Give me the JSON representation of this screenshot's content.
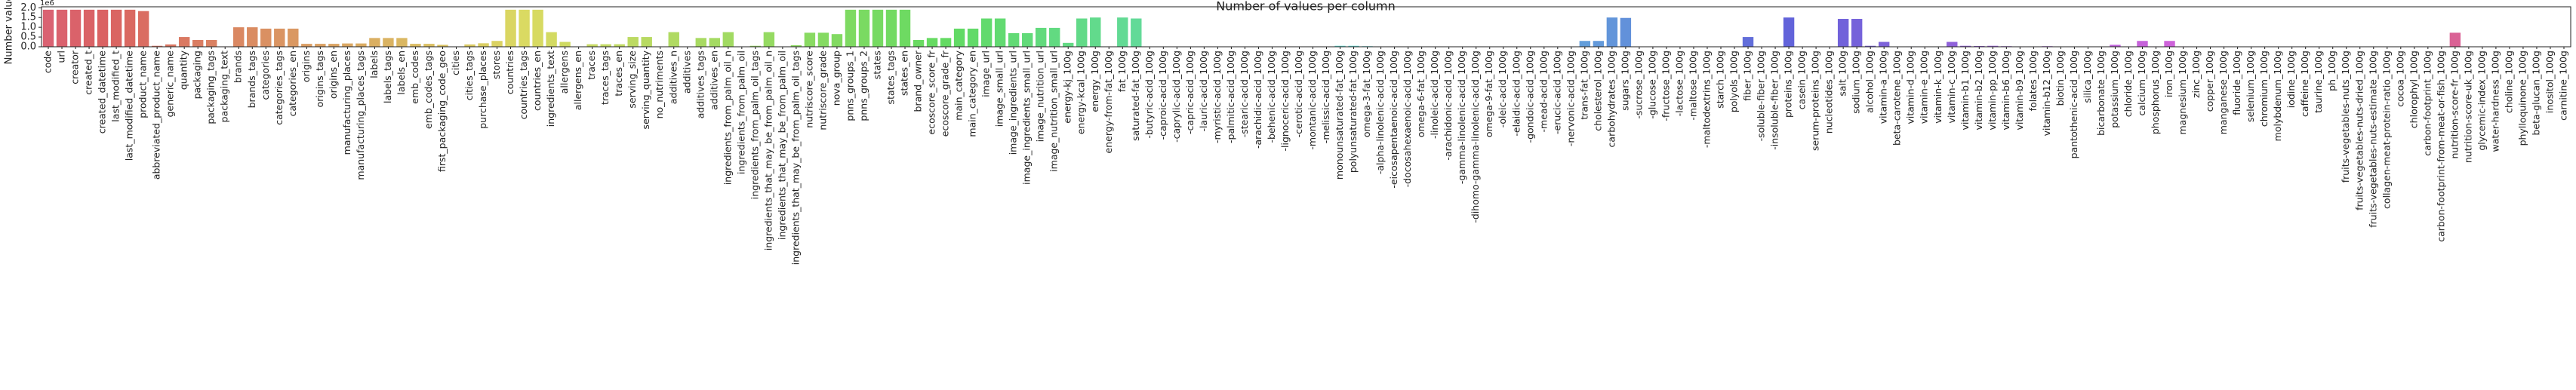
{
  "chart_data": {
    "type": "bar",
    "title": "Number of values per column",
    "y_label": "Number values",
    "y_offset_label": "1e6",
    "palette": "husl",
    "categories": [
      "code",
      "url",
      "creator",
      "created_t",
      "created_datetime",
      "last_modified_t",
      "last_modified_datetime",
      "product_name",
      "abbreviated_product_name",
      "generic_name",
      "quantity",
      "packaging",
      "packaging_tags",
      "packaging_text",
      "brands",
      "brands_tags",
      "categories",
      "categories_tags",
      "categories_en",
      "origins",
      "origins_tags",
      "origins_en",
      "manufacturing_places",
      "manufacturing_places_tags",
      "labels",
      "labels_tags",
      "labels_en",
      "emb_codes",
      "emb_codes_tags",
      "first_packaging_code_geo",
      "cities",
      "cities_tags",
      "purchase_places",
      "stores",
      "countries",
      "countries_tags",
      "countries_en",
      "ingredients_text",
      "allergens",
      "allergens_en",
      "traces",
      "traces_tags",
      "traces_en",
      "serving_size",
      "serving_quantity",
      "no_nutriments",
      "additives_n",
      "additives",
      "additives_tags",
      "additives_en",
      "ingredients_from_palm_oil_n",
      "ingredients_from_palm_oil",
      "ingredients_from_palm_oil_tags",
      "ingredients_that_may_be_from_palm_oil_n",
      "ingredients_that_may_be_from_palm_oil",
      "ingredients_that_may_be_from_palm_oil_tags",
      "nutriscore_score",
      "nutriscore_grade",
      "nova_group",
      "pnns_groups_1",
      "pnns_groups_2",
      "states",
      "states_tags",
      "states_en",
      "brand_owner",
      "ecoscore_score_fr",
      "ecoscore_grade_fr",
      "main_category",
      "main_category_en",
      "image_url",
      "image_small_url",
      "image_ingredients_url",
      "image_ingredients_small_url",
      "image_nutrition_url",
      "image_nutrition_small_url",
      "energy-kj_100g",
      "energy-kcal_100g",
      "energy_100g",
      "energy-from-fat_100g",
      "fat_100g",
      "saturated-fat_100g",
      "-butyric-acid_100g",
      "-caproic-acid_100g",
      "-caprylic-acid_100g",
      "-capric-acid_100g",
      "-lauric-acid_100g",
      "-myristic-acid_100g",
      "-palmitic-acid_100g",
      "-stearic-acid_100g",
      "-arachidic-acid_100g",
      "-behenic-acid_100g",
      "-lignoceric-acid_100g",
      "-cerotic-acid_100g",
      "-montanic-acid_100g",
      "-melissic-acid_100g",
      "monounsaturated-fat_100g",
      "polyunsaturated-fat_100g",
      "omega-3-fat_100g",
      "-alpha-linolenic-acid_100g",
      "-eicosapentaenoic-acid_100g",
      "-docosahexaenoic-acid_100g",
      "omega-6-fat_100g",
      "-linoleic-acid_100g",
      "-arachidonic-acid_100g",
      "-gamma-linolenic-acid_100g",
      "-dihomo-gamma-linolenic-acid_100g",
      "omega-9-fat_100g",
      "-oleic-acid_100g",
      "-elaidic-acid_100g",
      "-gondoic-acid_100g",
      "-mead-acid_100g",
      "-erucic-acid_100g",
      "-nervonic-acid_100g",
      "trans-fat_100g",
      "cholesterol_100g",
      "carbohydrates_100g",
      "sugars_100g",
      "-sucrose_100g",
      "-glucose_100g",
      "-fructose_100g",
      "-lactose_100g",
      "-maltose_100g",
      "-maltodextrins_100g",
      "starch_100g",
      "polyols_100g",
      "fiber_100g",
      "-soluble-fiber_100g",
      "-insoluble-fiber_100g",
      "proteins_100g",
      "casein_100g",
      "serum-proteins_100g",
      "nucleotides_100g",
      "salt_100g",
      "sodium_100g",
      "alcohol_100g",
      "vitamin-a_100g",
      "beta-carotene_100g",
      "vitamin-d_100g",
      "vitamin-e_100g",
      "vitamin-k_100g",
      "vitamin-c_100g",
      "vitamin-b1_100g",
      "vitamin-b2_100g",
      "vitamin-pp_100g",
      "vitamin-b6_100g",
      "vitamin-b9_100g",
      "folates_100g",
      "vitamin-b12_100g",
      "biotin_100g",
      "pantothenic-acid_100g",
      "silica_100g",
      "bicarbonate_100g",
      "potassium_100g",
      "chloride_100g",
      "calcium_100g",
      "phosphorus_100g",
      "iron_100g",
      "magnesium_100g",
      "zinc_100g",
      "copper_100g",
      "manganese_100g",
      "fluoride_100g",
      "selenium_100g",
      "chromium_100g",
      "molybdenum_100g",
      "iodine_100g",
      "caffeine_100g",
      "taurine_100g",
      "ph_100g",
      "fruits-vegetables-nuts_100g",
      "fruits-vegetables-nuts-dried_100g",
      "fruits-vegetables-nuts-estimate_100g",
      "collagen-meat-protein-ratio_100g",
      "cocoa_100g",
      "chlorophyl_100g",
      "carbon-footprint_100g",
      "carbon-footprint-from-meat-or-fish_100g",
      "nutrition-score-fr_100g",
      "nutrition-score-uk_100g",
      "glycemic-index_100g",
      "water-hardness_100g",
      "choline_100g",
      "phylloquinone_100g",
      "beta-glucan_100g",
      "inositol_100g",
      "carnitine_100g"
    ],
    "values": [
      1.9,
      1.9,
      1.9,
      1.9,
      1.9,
      1.9,
      1.9,
      1.83,
      0.05,
      0.12,
      0.5,
      0.35,
      0.35,
      0.02,
      1.0,
      1.0,
      0.93,
      0.93,
      0.93,
      0.15,
      0.15,
      0.15,
      0.17,
      0.17,
      0.45,
      0.45,
      0.45,
      0.15,
      0.15,
      0.1,
      0,
      0.12,
      0.18,
      0.3,
      1.9,
      1.9,
      1.9,
      0.75,
      0.25,
      0,
      0.13,
      0.13,
      0.13,
      0.5,
      0.5,
      0,
      0.75,
      0,
      0.45,
      0.45,
      0.75,
      0,
      0.05,
      0.75,
      0,
      0.08,
      0.72,
      0.72,
      0.65,
      1.9,
      1.9,
      1.9,
      1.9,
      1.9,
      0.35,
      0.45,
      0.45,
      0.93,
      0.93,
      1.45,
      1.45,
      0.7,
      0.7,
      0.97,
      0.97,
      0.2,
      1.45,
      1.5,
      0.01,
      1.5,
      1.45,
      0,
      0,
      0,
      0,
      0,
      0,
      0,
      0,
      0,
      0,
      0,
      0,
      0,
      0,
      0.05,
      0.05,
      0.03,
      0.01,
      0,
      0,
      0.01,
      0.01,
      0,
      0,
      0,
      0,
      0,
      0,
      0,
      0,
      0,
      0,
      0.3,
      0.3,
      1.5,
      1.48,
      0,
      0,
      0,
      0,
      0,
      0,
      0.01,
      0.01,
      0.5,
      0,
      0,
      1.5,
      0,
      0,
      0,
      1.43,
      1.43,
      0.05,
      0.25,
      0,
      0.02,
      0.01,
      0.01,
      0.25,
      0.05,
      0.04,
      0.05,
      0.03,
      0.02,
      0.02,
      0.03,
      0,
      0.01,
      0,
      0,
      0.1,
      0,
      0.3,
      0.02,
      0.3,
      0.02,
      0.01,
      0,
      0,
      0,
      0,
      0,
      0,
      0,
      0,
      0,
      0,
      0,
      0,
      0.01,
      0,
      0.01,
      0,
      0,
      0,
      0.72,
      0,
      0,
      0,
      0,
      0,
      0,
      0,
      0
    ],
    "ylim": [
      0,
      2.05
    ],
    "yticks": [
      {
        "value": 0,
        "label": "0.0"
      },
      {
        "value": 0.5,
        "label": "0.5"
      },
      {
        "value": 1,
        "label": "1.0"
      },
      {
        "value": 1.5,
        "label": "1.5"
      },
      {
        "value": 2,
        "label": "2.0"
      }
    ]
  }
}
